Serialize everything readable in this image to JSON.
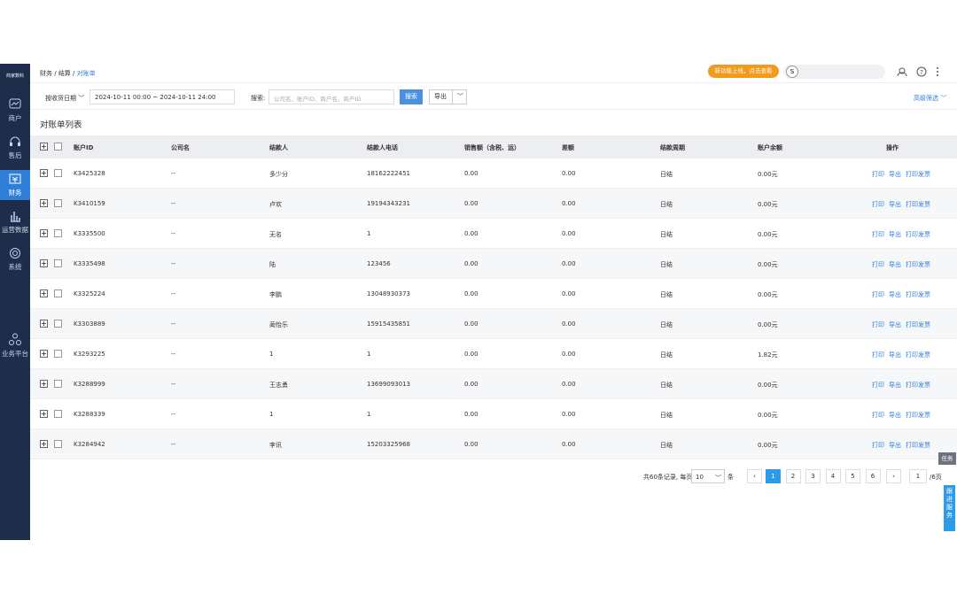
{
  "sidebar": {
    "logo": "商家数科",
    "items": [
      "商户",
      "售后",
      "财务",
      "运营数据",
      "系统",
      "业务平台"
    ]
  },
  "header": {
    "breadcrumb": [
      "财务",
      "结算",
      "对账单"
    ],
    "promo": "新功能上线，点击查看",
    "avatar": "S"
  },
  "filter": {
    "date_type": "按收货日期",
    "date_range": "2024-10-11 00:00 ~ 2024-10-11 24:00",
    "search_label": "搜索:",
    "search_placeholder": "公司名、账户ID、商户名、商户ID",
    "search_button": "搜索",
    "export_button": "导出",
    "advanced": "高级筛选"
  },
  "table": {
    "title": "对账单列表",
    "columns": [
      "账户ID",
      "公司名",
      "结款人",
      "结款人电话",
      "销售额（含税、运）",
      "差额",
      "结款周期",
      "账户余额",
      "操作"
    ],
    "actions": [
      "打印",
      "导出",
      "打印发票"
    ],
    "rows": [
      [
        "K3425328",
        "--",
        "多少分",
        "18162222451",
        "0.00",
        "0.00",
        "日结",
        "0.00元"
      ],
      [
        "K3410159",
        "--",
        "卢欢",
        "19194343231",
        "0.00",
        "0.00",
        "日结",
        "0.00元"
      ],
      [
        "K3335500",
        "--",
        "无名",
        "1",
        "0.00",
        "0.00",
        "日结",
        "0.00元"
      ],
      [
        "K3335498",
        "--",
        "陆",
        "123456",
        "0.00",
        "0.00",
        "日结",
        "0.00元"
      ],
      [
        "K3325224",
        "--",
        "李鹏",
        "13048930373",
        "0.00",
        "0.00",
        "日结",
        "0.00元"
      ],
      [
        "K3303889",
        "--",
        "蔺怡乐",
        "15915435851",
        "0.00",
        "0.00",
        "日结",
        "0.00元"
      ],
      [
        "K3293225",
        "--",
        "1",
        "1",
        "0.00",
        "0.00",
        "日结",
        "1.82元"
      ],
      [
        "K3288999",
        "--",
        "王志勇",
        "13699093013",
        "0.00",
        "0.00",
        "日结",
        "0.00元"
      ],
      [
        "K3288339",
        "--",
        "1",
        "1",
        "0.00",
        "0.00",
        "日结",
        "0.00元"
      ],
      [
        "K3284942",
        "--",
        "李讯",
        "15203325968",
        "0.00",
        "0.00",
        "日结",
        "0.00元"
      ]
    ]
  },
  "pagination": {
    "total": "共60条记录, 每页",
    "page_size": "10",
    "unit": "条",
    "pages": [
      1,
      2,
      3,
      4,
      5,
      6
    ],
    "jump": "1",
    "page_count": "/6页"
  },
  "float": {
    "task": "任务",
    "service": "跟进服务"
  }
}
